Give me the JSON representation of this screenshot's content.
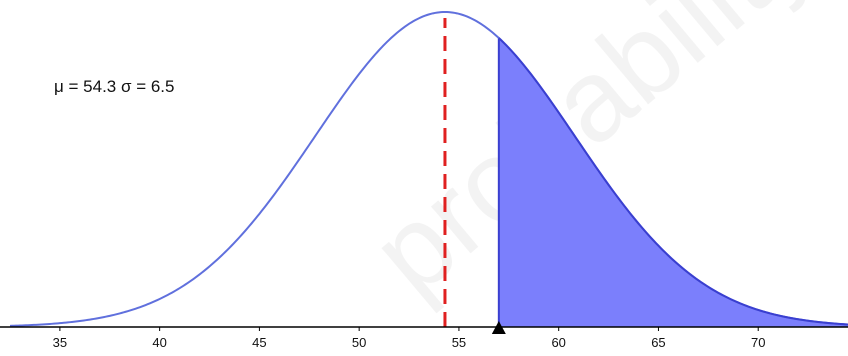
{
  "chart_data": {
    "type": "area",
    "title": "",
    "xlabel": "",
    "ylabel": "",
    "xlim": [
      32.5,
      74.5
    ],
    "grid": false,
    "legend": "none",
    "distribution": "normal",
    "mean": 54.3,
    "sd": 6.5,
    "parameter_label": "μ = 54.3 σ = 6.5",
    "mean_marker": 54.3,
    "shaded_region": {
      "from": 57,
      "to": 74.5
    },
    "marker_value": 57,
    "xticks": [
      "35",
      "40",
      "45",
      "50",
      "55",
      "60",
      "65",
      "70"
    ],
    "xtick_values": [
      35,
      40,
      45,
      50,
      55,
      60,
      65,
      70
    ],
    "watermark_text": "probabilityandstats",
    "colors": {
      "curve": "#6070dd",
      "shade": "#7b7ffc",
      "shade_edge": "#3a3fd0",
      "mean_line": "#e02020",
      "axis": "#000000",
      "marker": "#000000"
    }
  }
}
